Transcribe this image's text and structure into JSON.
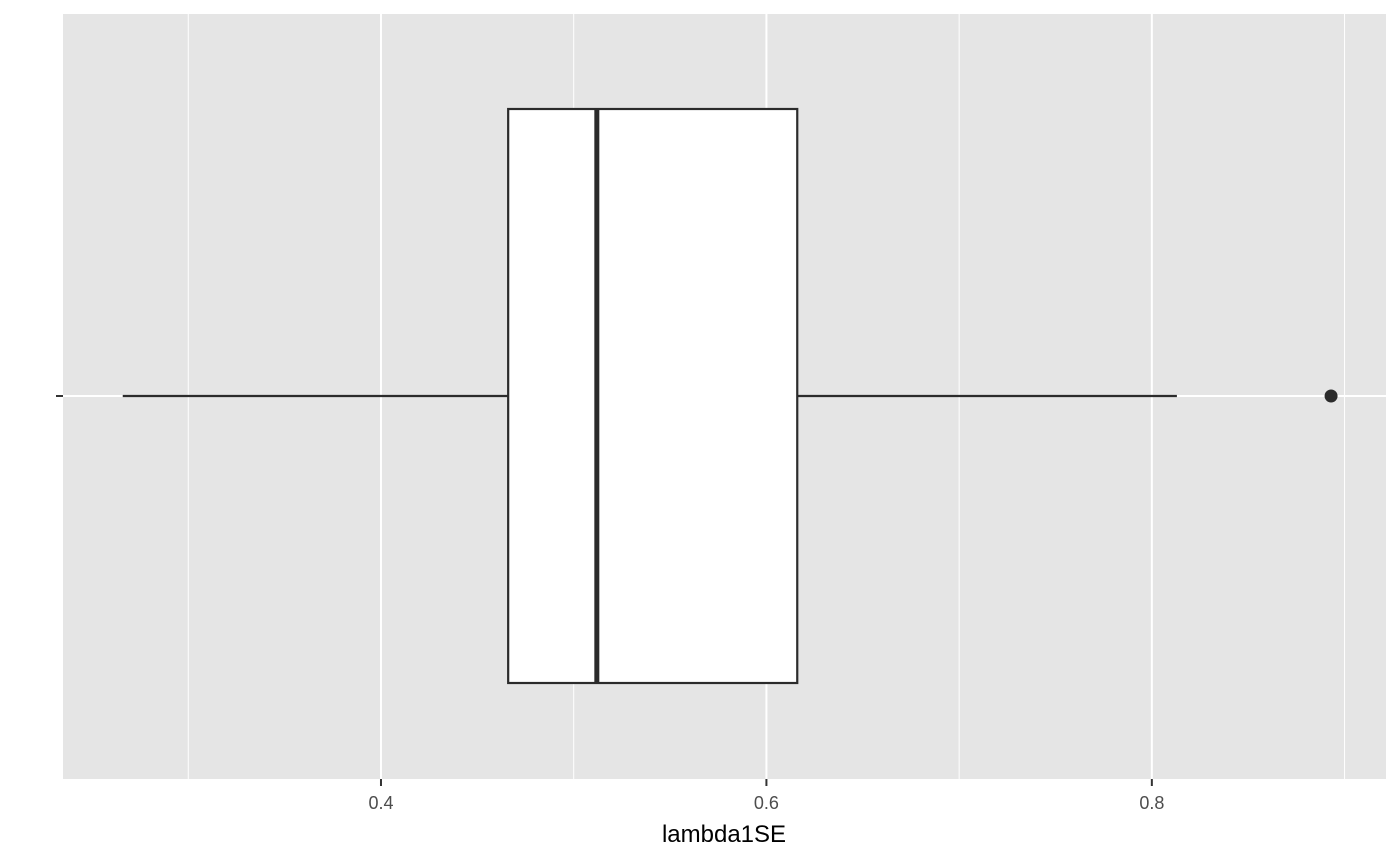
{
  "chart_data": {
    "type": "boxplot",
    "orientation": "horizontal",
    "xlabel": "lambda1SE",
    "ylabel": "",
    "title": "",
    "xlim": [
      0.235,
      0.9215
    ],
    "x_ticks": [
      {
        "value": 0.4,
        "label": "0.4"
      },
      {
        "value": 0.6,
        "label": "0.6"
      },
      {
        "value": 0.8,
        "label": "0.8"
      }
    ],
    "x_minor_ticks": [
      0.3,
      0.5,
      0.7,
      0.9
    ],
    "box": {
      "whisker_low": 0.266,
      "q1": 0.466,
      "median": 0.512,
      "q3": 0.616,
      "whisker_high": 0.813
    },
    "outliers": [
      0.893
    ],
    "grid": true,
    "legend": "none",
    "colors": {
      "panel_background": "#e5e5e5",
      "grid": "#ffffff",
      "box_fill": "#ffffff",
      "box_outline": "#2b2b2b"
    }
  }
}
